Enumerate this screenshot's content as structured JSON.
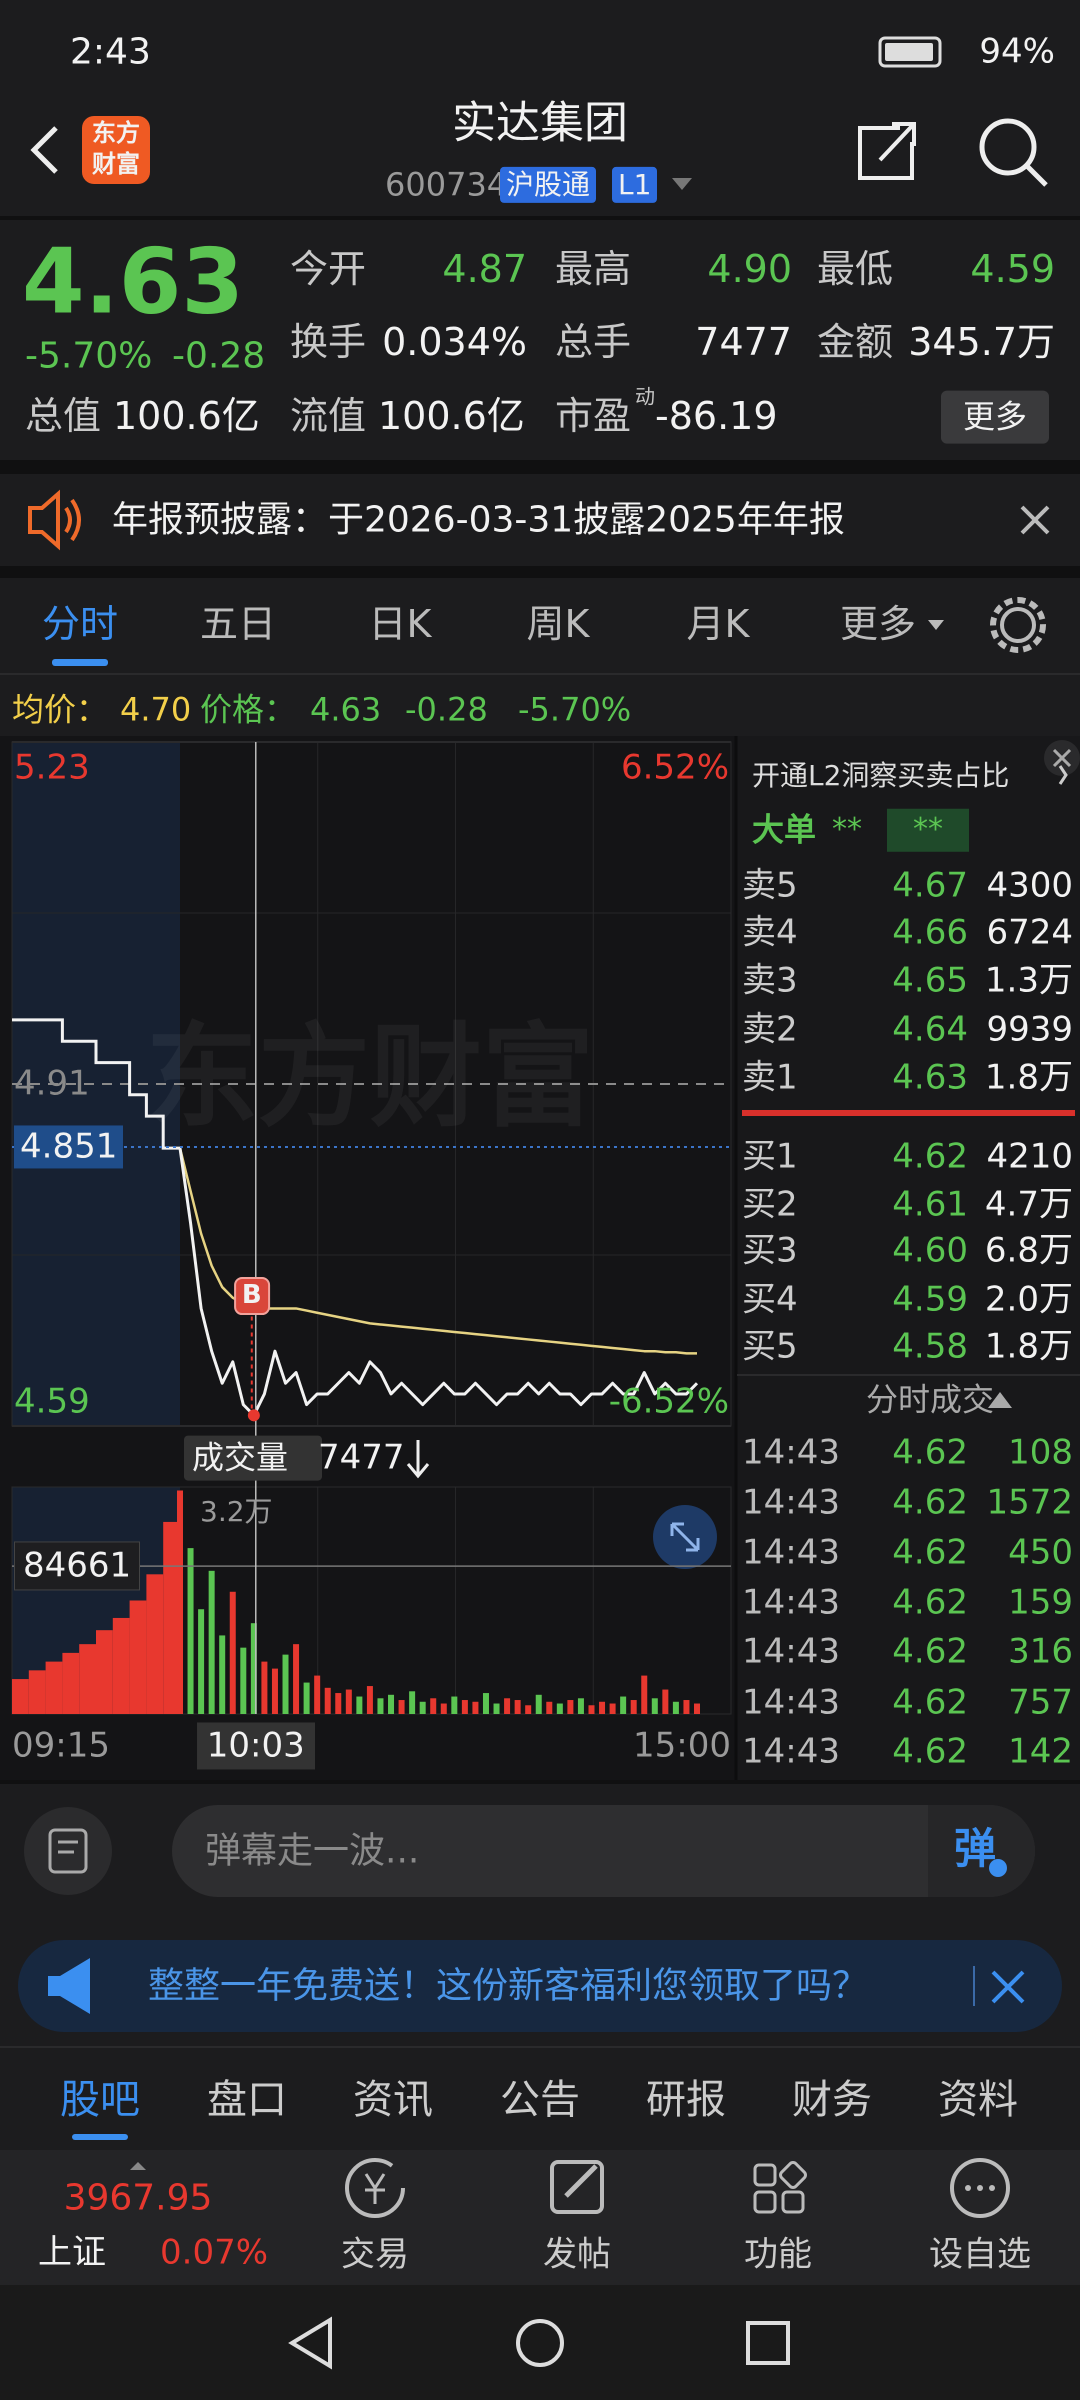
{
  "status_bar": {
    "time": "2:43",
    "battery": "94%"
  },
  "header": {
    "logo": [
      "东方",
      "财富"
    ],
    "title": "实达集团",
    "code": "600734",
    "tags": [
      "沪股通",
      "L1"
    ]
  },
  "quote": {
    "price": "4.63",
    "change_pct": "-5.70%",
    "change": "-0.28",
    "fields": [
      [
        {
          "label": "今开",
          "value": "4.87"
        },
        {
          "label": "最高",
          "value": "4.90"
        },
        {
          "label": "最低",
          "value": "4.59"
        }
      ],
      [
        {
          "label": "换手",
          "value": "0.034%"
        },
        {
          "label": "总手",
          "value": "7477"
        },
        {
          "label": "金额",
          "value": "345.7万"
        }
      ],
      [
        {
          "label": "总值",
          "value": "100.6亿"
        },
        {
          "label": "流值",
          "value": "100.6亿"
        },
        {
          "label": "市盈",
          "sup": "动",
          "value": "-86.19"
        }
      ]
    ],
    "more": "更多"
  },
  "notice": "年报预披露：于2026-03-31披露2025年年报",
  "tabs": [
    "分时",
    "五日",
    "日K",
    "周K",
    "月K",
    "更多"
  ],
  "info_bar": {
    "avg_label": "均价：",
    "avg": "4.70",
    "price_label": "价格：",
    "price": "4.63",
    "change": "-0.28",
    "change_pct": "-5.70%"
  },
  "intraday": {
    "watermark": "东方财富",
    "ylim": [
      4.59,
      5.23
    ],
    "yticks": [
      4.59,
      4.91,
      5.23
    ],
    "pct_ticks": [
      "6.52%",
      "-6.52%"
    ],
    "xticks": [
      "09:15",
      "15:00"
    ],
    "crosshair": {
      "time": "10:03",
      "price": 4.851,
      "volume": "3.2万"
    },
    "marker": "B",
    "auction_price": [
      4.97,
      4.97,
      4.97,
      4.95,
      4.95,
      4.93,
      4.93,
      4.9,
      4.88,
      4.85
    ],
    "price": [
      4.85,
      4.78,
      4.7,
      4.66,
      4.63,
      4.65,
      4.61,
      4.6,
      4.62,
      4.66,
      4.63,
      4.64,
      4.61,
      4.62,
      4.62,
      4.63,
      4.64,
      4.63,
      4.65,
      4.64,
      4.62,
      4.63,
      4.62,
      4.61,
      4.62,
      4.63,
      4.62,
      4.62,
      4.63,
      4.62,
      4.61,
      4.62,
      4.62,
      4.63,
      4.62,
      4.63,
      4.62,
      4.62,
      4.61,
      4.62,
      4.62,
      4.63,
      4.62,
      4.62,
      4.64,
      4.62,
      4.63,
      4.62,
      4.62,
      4.63
    ],
    "avg_price": [
      4.85,
      4.81,
      4.77,
      4.74,
      4.72,
      4.71,
      4.705,
      4.7,
      4.7,
      4.7,
      4.7,
      4.7,
      4.698,
      4.696,
      4.694,
      4.692,
      4.69,
      4.688,
      4.686,
      4.685,
      4.684,
      4.683,
      4.682,
      4.681,
      4.68,
      4.679,
      4.678,
      4.677,
      4.676,
      4.675,
      4.674,
      4.673,
      4.672,
      4.671,
      4.67,
      4.669,
      4.668,
      4.667,
      4.666,
      4.665,
      4.664,
      4.663,
      4.662,
      4.661,
      4.66,
      4.66,
      4.659,
      4.659,
      4.658,
      4.658
    ],
    "volume_label": "成交量",
    "volume_total": "7477",
    "vol_ylim": [
      0,
      130000
    ],
    "vol_ref": 84661,
    "auction_volume": [
      20000,
      25000,
      30000,
      35000,
      40000,
      48000,
      55000,
      65000,
      80000,
      110000
    ],
    "volume": [
      128000,
      95000,
      60000,
      82000,
      45000,
      70000,
      38000,
      52000,
      30000,
      26000,
      34000,
      40000,
      18000,
      22000,
      15000,
      12000,
      14000,
      10000,
      16000,
      9000,
      11000,
      8000,
      13000,
      7000,
      9000,
      6000,
      10000,
      8000,
      7000,
      12000,
      6000,
      9000,
      8000,
      5000,
      11000,
      7000,
      6000,
      8000,
      9000,
      5000,
      7000,
      6000,
      10000,
      8000,
      22000,
      9000,
      14000,
      7000,
      8000,
      6000
    ]
  },
  "order_book": {
    "title": "开通L2洞察买卖占比",
    "big_order": {
      "label": "大单",
      "values": [
        "**",
        "**"
      ]
    },
    "asks": [
      {
        "label": "卖5",
        "price": "4.67",
        "volume": "4300"
      },
      {
        "label": "卖4",
        "price": "4.66",
        "volume": "6724"
      },
      {
        "label": "卖3",
        "price": "4.65",
        "volume": "1.3万"
      },
      {
        "label": "卖2",
        "price": "4.64",
        "volume": "9939"
      },
      {
        "label": "卖1",
        "price": "4.63",
        "volume": "1.8万"
      }
    ],
    "bids": [
      {
        "label": "买1",
        "price": "4.62",
        "volume": "4210"
      },
      {
        "label": "买2",
        "price": "4.61",
        "volume": "4.7万"
      },
      {
        "label": "买3",
        "price": "4.60",
        "volume": "6.8万"
      },
      {
        "label": "买4",
        "price": "4.59",
        "volume": "2.0万"
      },
      {
        "label": "买5",
        "price": "4.58",
        "volume": "1.8万"
      }
    ]
  },
  "trades": {
    "title": "分时成交",
    "rows": [
      {
        "time": "14:43",
        "price": "4.62",
        "volume": "108"
      },
      {
        "time": "14:43",
        "price": "4.62",
        "volume": "1572"
      },
      {
        "time": "14:43",
        "price": "4.62",
        "volume": "450"
      },
      {
        "time": "14:43",
        "price": "4.62",
        "volume": "159"
      },
      {
        "time": "14:43",
        "price": "4.62",
        "volume": "316"
      },
      {
        "time": "14:43",
        "price": "4.62",
        "volume": "757"
      },
      {
        "time": "14:43",
        "price": "4.62",
        "volume": "142"
      }
    ]
  },
  "danmaku": {
    "placeholder": "弹幕走一波...",
    "button": "弹"
  },
  "banner": "整整一年免费送！这份新客福利您领取了吗？",
  "bottom_tabs": [
    "股吧",
    "盘口",
    "资讯",
    "公告",
    "研报",
    "财务",
    "资料"
  ],
  "bottom_nav": {
    "index": {
      "value": "3967.95",
      "name": "上证",
      "change": "0.07%"
    },
    "items": [
      "交易",
      "发帖",
      "功能",
      "设自选"
    ]
  }
}
